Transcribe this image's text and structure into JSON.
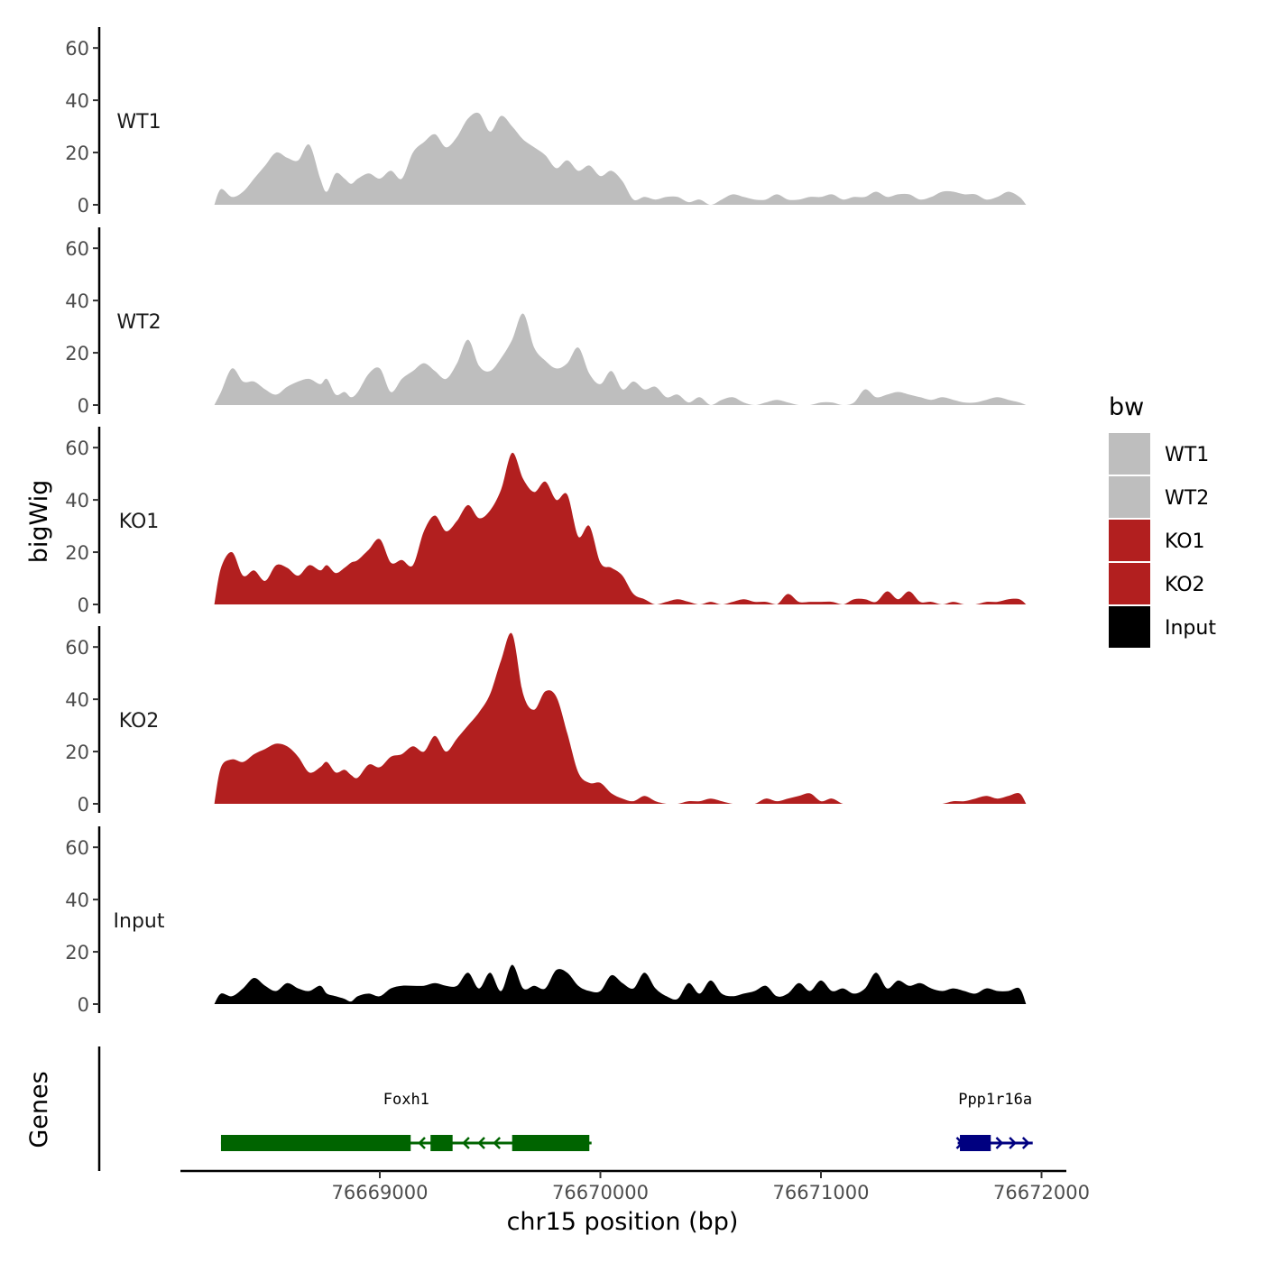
{
  "chart_data": {
    "type": "area",
    "title": "",
    "xlabel": "chr15 position (bp)",
    "ylabel": "bigWig",
    "genes_label": "Genes",
    "xlim": [
      76668200,
      76671950
    ],
    "ylim": [
      0,
      68
    ],
    "x_ticks": [
      76669000,
      76670000,
      76671000,
      76672000
    ],
    "x_tick_labels": [
      "76669000",
      "76670000",
      "76671000",
      "76672000"
    ],
    "y_ticks": [
      0,
      20,
      40,
      60
    ],
    "y_tick_labels": [
      "0",
      "20",
      "40",
      "60"
    ],
    "grid": false,
    "legend": {
      "title": "bw",
      "position": "right",
      "entries": [
        {
          "label": "WT1",
          "color": "#bebebe"
        },
        {
          "label": "WT2",
          "color": "#bebebe"
        },
        {
          "label": "KO1",
          "color": "#b21f1f"
        },
        {
          "label": "KO2",
          "color": "#b21f1f"
        },
        {
          "label": "Input",
          "color": "#000000"
        }
      ]
    },
    "series": [
      {
        "name": "WT1",
        "color": "#bebebe",
        "x": [
          76668250,
          76668280,
          76668330,
          76668380,
          76668430,
          76668480,
          76668530,
          76668580,
          76668630,
          76668680,
          76668730,
          76668760,
          76668800,
          76668840,
          76668870,
          76668900,
          76668950,
          76669000,
          76669050,
          76669100,
          76669150,
          76669200,
          76669250,
          76669300,
          76669350,
          76669400,
          76669450,
          76669500,
          76669550,
          76669600,
          76669650,
          76669700,
          76669750,
          76669800,
          76669850,
          76669900,
          76669950,
          76670000,
          76670050,
          76670100,
          76670150,
          76670200,
          76670250,
          76670300,
          76670350,
          76670400,
          76670450,
          76670500,
          76670550,
          76670600,
          76670650,
          76670700,
          76670750,
          76670800,
          76670850,
          76670900,
          76670950,
          76671000,
          76671050,
          76671100,
          76671150,
          76671200,
          76671250,
          76671300,
          76671350,
          76671400,
          76671450,
          76671500,
          76671550,
          76671600,
          76671650,
          76671700,
          76671750,
          76671800,
          76671850,
          76671900,
          76671930
        ],
        "y": [
          0,
          6,
          3,
          5,
          10,
          15,
          20,
          18,
          17,
          23,
          10,
          5,
          12,
          10,
          8,
          10,
          12,
          10,
          13,
          10,
          20,
          24,
          27,
          22,
          26,
          33,
          35,
          28,
          34,
          30,
          25,
          22,
          19,
          14,
          17,
          13,
          15,
          11,
          13,
          9,
          2,
          3,
          2,
          3,
          3,
          1,
          2,
          0,
          2,
          4,
          3,
          2,
          2,
          4,
          2,
          2,
          3,
          3,
          4,
          2,
          3,
          3,
          5,
          3,
          4,
          4,
          2,
          3,
          5,
          5,
          4,
          4,
          2,
          3,
          5,
          3,
          0
        ]
      },
      {
        "name": "WT2",
        "color": "#bebebe",
        "x": [
          76668250,
          76668280,
          76668330,
          76668380,
          76668430,
          76668480,
          76668530,
          76668580,
          76668630,
          76668680,
          76668730,
          76668760,
          76668800,
          76668840,
          76668870,
          76668900,
          76668950,
          76669000,
          76669050,
          76669100,
          76669150,
          76669200,
          76669250,
          76669300,
          76669350,
          76669400,
          76669450,
          76669500,
          76669550,
          76669600,
          76669650,
          76669700,
          76669750,
          76669800,
          76669850,
          76669900,
          76669950,
          76670000,
          76670050,
          76670100,
          76670150,
          76670200,
          76670250,
          76670300,
          76670350,
          76670400,
          76670450,
          76670500,
          76670550,
          76670600,
          76670650,
          76670700,
          76670750,
          76670800,
          76670850,
          76670900,
          76670950,
          76671000,
          76671050,
          76671100,
          76671150,
          76671200,
          76671250,
          76671300,
          76671350,
          76671400,
          76671450,
          76671500,
          76671550,
          76671600,
          76671650,
          76671700,
          76671750,
          76671800,
          76671850,
          76671900,
          76671930
        ],
        "y": [
          0,
          5,
          14,
          9,
          9,
          6,
          4,
          7,
          9,
          10,
          8,
          10,
          4,
          5,
          3,
          5,
          12,
          14,
          5,
          10,
          13,
          16,
          13,
          10,
          16,
          25,
          15,
          13,
          18,
          25,
          35,
          22,
          17,
          14,
          16,
          22,
          12,
          8,
          13,
          6,
          9,
          6,
          7,
          3,
          4,
          1,
          3,
          0,
          2,
          3,
          1,
          0,
          1,
          2,
          1,
          0,
          0,
          1,
          1,
          0,
          1,
          6,
          3,
          4,
          5,
          4,
          3,
          2,
          3,
          2,
          1,
          1,
          2,
          3,
          2,
          1,
          0
        ]
      },
      {
        "name": "KO1",
        "color": "#b21f1f",
        "x": [
          76668250,
          76668280,
          76668330,
          76668380,
          76668430,
          76668480,
          76668530,
          76668580,
          76668630,
          76668680,
          76668730,
          76668760,
          76668800,
          76668840,
          76668870,
          76668900,
          76668950,
          76669000,
          76669050,
          76669100,
          76669150,
          76669200,
          76669250,
          76669300,
          76669350,
          76669400,
          76669450,
          76669500,
          76669550,
          76669600,
          76669650,
          76669700,
          76669750,
          76669800,
          76669850,
          76669900,
          76669950,
          76670000,
          76670050,
          76670100,
          76670150,
          76670200,
          76670250,
          76670300,
          76670350,
          76670400,
          76670450,
          76670500,
          76670550,
          76670600,
          76670650,
          76670700,
          76670750,
          76670800,
          76670850,
          76670900,
          76670950,
          76671000,
          76671050,
          76671100,
          76671150,
          76671200,
          76671250,
          76671300,
          76671350,
          76671400,
          76671450,
          76671500,
          76671550,
          76671600,
          76671650,
          76671700,
          76671750,
          76671800,
          76671850,
          76671900,
          76671930
        ],
        "y": [
          0,
          14,
          20,
          11,
          13,
          9,
          15,
          14,
          11,
          15,
          13,
          15,
          12,
          14,
          16,
          17,
          21,
          25,
          16,
          17,
          15,
          28,
          34,
          28,
          32,
          38,
          33,
          36,
          44,
          58,
          48,
          43,
          47,
          40,
          42,
          26,
          30,
          16,
          14,
          11,
          4,
          2,
          0,
          1,
          2,
          1,
          0,
          1,
          0,
          1,
          2,
          1,
          1,
          0,
          4,
          1,
          1,
          1,
          1,
          0,
          2,
          2,
          1,
          5,
          2,
          5,
          1,
          1,
          0,
          1,
          0,
          0,
          1,
          1,
          2,
          2,
          0
        ]
      },
      {
        "name": "KO2",
        "color": "#b21f1f",
        "x": [
          76668250,
          76668280,
          76668330,
          76668380,
          76668430,
          76668480,
          76668530,
          76668580,
          76668630,
          76668680,
          76668730,
          76668760,
          76668800,
          76668840,
          76668870,
          76668900,
          76668950,
          76669000,
          76669050,
          76669100,
          76669150,
          76669200,
          76669250,
          76669300,
          76669350,
          76669400,
          76669450,
          76669500,
          76669550,
          76669600,
          76669650,
          76669700,
          76669750,
          76669800,
          76669850,
          76669900,
          76669950,
          76670000,
          76670050,
          76670100,
          76670150,
          76670200,
          76670250,
          76670300,
          76670350,
          76670400,
          76670450,
          76670500,
          76670550,
          76670600,
          76670650,
          76670700,
          76670750,
          76670800,
          76670850,
          76670900,
          76670950,
          76671000,
          76671050,
          76671100,
          76671150,
          76671200,
          76671250,
          76671300,
          76671350,
          76671400,
          76671450,
          76671500,
          76671550,
          76671600,
          76671650,
          76671700,
          76671750,
          76671800,
          76671850,
          76671900,
          76671930
        ],
        "y": [
          0,
          14,
          17,
          16,
          19,
          21,
          23,
          22,
          18,
          12,
          14,
          16,
          12,
          13,
          11,
          10,
          15,
          14,
          18,
          19,
          22,
          20,
          26,
          20,
          25,
          30,
          35,
          42,
          55,
          65,
          42,
          36,
          43,
          41,
          27,
          12,
          8,
          8,
          4,
          2,
          1,
          3,
          1,
          0,
          0,
          1,
          1,
          2,
          1,
          0,
          0,
          0,
          2,
          1,
          2,
          3,
          4,
          1,
          2,
          0,
          0,
          0,
          0,
          0,
          0,
          0,
          0,
          0,
          0,
          1,
          1,
          2,
          3,
          2,
          3,
          4,
          0
        ]
      },
      {
        "name": "Input",
        "color": "#000000",
        "x": [
          76668250,
          76668280,
          76668330,
          76668380,
          76668430,
          76668480,
          76668530,
          76668580,
          76668630,
          76668680,
          76668730,
          76668760,
          76668800,
          76668840,
          76668870,
          76668900,
          76668950,
          76669000,
          76669050,
          76669100,
          76669150,
          76669200,
          76669250,
          76669300,
          76669350,
          76669400,
          76669450,
          76669500,
          76669550,
          76669600,
          76669650,
          76669700,
          76669750,
          76669800,
          76669850,
          76669900,
          76669950,
          76670000,
          76670050,
          76670100,
          76670150,
          76670200,
          76670250,
          76670300,
          76670350,
          76670400,
          76670450,
          76670500,
          76670550,
          76670600,
          76670650,
          76670700,
          76670750,
          76670800,
          76670850,
          76670900,
          76670950,
          76671000,
          76671050,
          76671100,
          76671150,
          76671200,
          76671250,
          76671300,
          76671350,
          76671400,
          76671450,
          76671500,
          76671550,
          76671600,
          76671650,
          76671700,
          76671750,
          76671800,
          76671850,
          76671900,
          76671930
        ],
        "y": [
          0,
          4,
          3,
          6,
          10,
          7,
          5,
          8,
          6,
          5,
          7,
          4,
          3,
          2,
          1,
          3,
          4,
          3,
          6,
          7,
          7,
          7,
          8,
          7,
          7,
          12,
          6,
          12,
          5,
          15,
          6,
          7,
          6,
          13,
          12,
          7,
          5,
          5,
          11,
          8,
          6,
          12,
          6,
          3,
          2,
          8,
          4,
          9,
          4,
          3,
          4,
          5,
          7,
          3,
          4,
          8,
          5,
          9,
          5,
          6,
          4,
          6,
          12,
          6,
          9,
          7,
          8,
          6,
          5,
          6,
          5,
          4,
          6,
          5,
          5,
          6,
          0
        ]
      }
    ],
    "genes": [
      {
        "name": "Foxh1",
        "strand": "-",
        "color": "#006400",
        "start": 76668280,
        "end": 76669960,
        "exons": [
          [
            76668280,
            76669140
          ],
          [
            76669230,
            76669330
          ],
          [
            76669600,
            76669950
          ]
        ],
        "arrows_x": [
          76669180,
          76669380,
          76669450,
          76669520
        ]
      },
      {
        "name": "Ppp1r16a",
        "strand": "+",
        "color": "#000080",
        "start": 76671620,
        "end": 76671960,
        "exons": [
          [
            76671630,
            76671770
          ]
        ],
        "arrows_x": [
          76671640,
          76671820,
          76671880,
          76671940
        ]
      }
    ]
  }
}
